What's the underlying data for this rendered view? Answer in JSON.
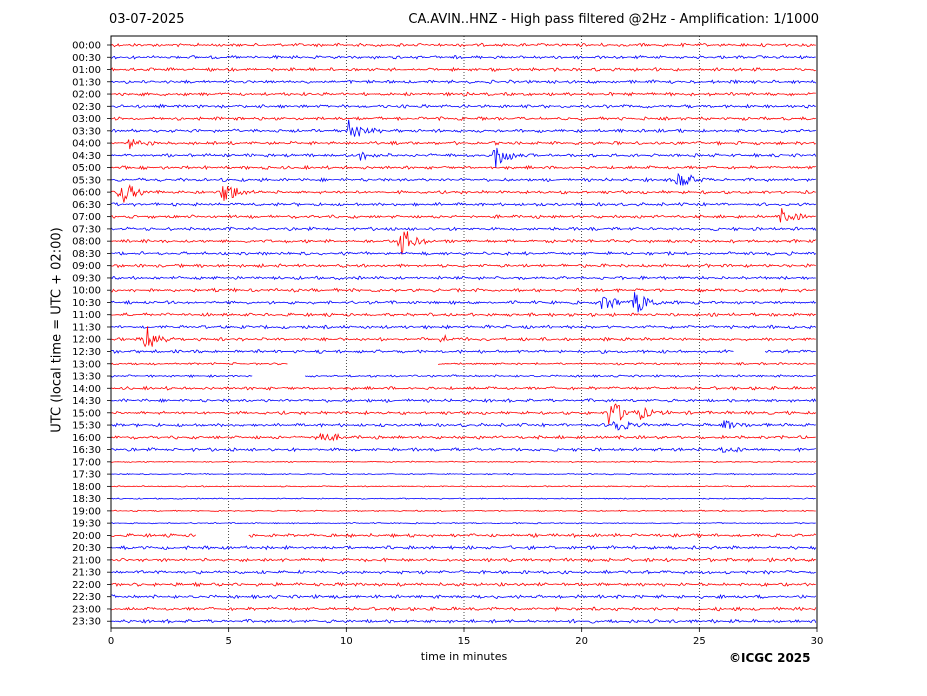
{
  "header": {
    "date": "03-07-2025",
    "title": "CA.AVIN..HNZ - High pass filtered @2Hz - Amplification: 1/1000"
  },
  "footer": {
    "copyright": "©ICGC 2025"
  },
  "chart_data": {
    "type": "line",
    "subtype": "helicorder",
    "xlabel": "time in minutes",
    "ylabel": "UTC (local time = UTC + 02:00)",
    "xlim": [
      0,
      30
    ],
    "x_ticks": [
      0,
      5,
      10,
      15,
      20,
      25,
      30
    ],
    "grid": "vertical dotted lines at 5-minute intervals",
    "colors": {
      "trace_a": "#ff0000",
      "trace_b": "#0000ff"
    },
    "row_labels": [
      "00:00",
      "00:30",
      "01:00",
      "01:30",
      "02:00",
      "02:30",
      "03:00",
      "03:30",
      "04:00",
      "04:30",
      "05:00",
      "05:30",
      "06:00",
      "06:30",
      "07:00",
      "07:30",
      "08:00",
      "08:30",
      "09:00",
      "09:30",
      "10:00",
      "10:30",
      "11:00",
      "11:30",
      "12:00",
      "12:30",
      "13:00",
      "13:30",
      "14:00",
      "14:30",
      "15:00",
      "15:30",
      "16:00",
      "16:30",
      "17:00",
      "17:30",
      "18:00",
      "18:30",
      "19:00",
      "19:30",
      "20:00",
      "20:30",
      "21:00",
      "21:30",
      "22:00",
      "22:30",
      "23:00",
      "23:30"
    ],
    "events": [
      {
        "row": "03:30",
        "minute": 10.1,
        "amplitude": 2.6
      },
      {
        "row": "04:00",
        "minute": 0.8,
        "amplitude": 0.9
      },
      {
        "row": "04:30",
        "minute": 16.3,
        "amplitude": 2.8
      },
      {
        "row": "04:30",
        "minute": 10.6,
        "amplitude": 1.0
      },
      {
        "row": "05:30",
        "minute": 24.1,
        "amplitude": 2.2
      },
      {
        "row": "06:00",
        "minute": 0.4,
        "amplitude": 3.0
      },
      {
        "row": "06:00",
        "minute": 4.8,
        "amplitude": 2.6
      },
      {
        "row": "07:00",
        "minute": 28.5,
        "amplitude": 1.4
      },
      {
        "row": "08:00",
        "minute": 12.3,
        "amplitude": 3.2
      },
      {
        "row": "10:30",
        "minute": 20.9,
        "amplitude": 2.0
      },
      {
        "row": "10:30",
        "minute": 22.3,
        "amplitude": 2.6
      },
      {
        "row": "12:00",
        "minute": 1.5,
        "amplitude": 3.0
      },
      {
        "row": "12:00",
        "minute": 14.0,
        "amplitude": 0.7
      },
      {
        "row": "15:00",
        "minute": 21.2,
        "amplitude": 3.6
      },
      {
        "row": "15:00",
        "minute": 22.5,
        "amplitude": 1.1
      },
      {
        "row": "15:30",
        "minute": 21.3,
        "amplitude": 2.0
      },
      {
        "row": "15:30",
        "minute": 26.1,
        "amplitude": 1.0
      },
      {
        "row": "16:00",
        "minute": 8.8,
        "amplitude": 1.6
      },
      {
        "row": "16:30",
        "minute": 26.0,
        "amplitude": 0.7
      }
    ],
    "gaps": [
      {
        "row": "12:30",
        "from": 26.5,
        "to": 27.8
      },
      {
        "row": "13:00",
        "from": 7.5,
        "to": 13.9
      },
      {
        "row": "13:30",
        "from": 6.0,
        "to": 8.2
      },
      {
        "row": "20:00",
        "from": 3.6,
        "to": 5.8
      }
    ]
  }
}
